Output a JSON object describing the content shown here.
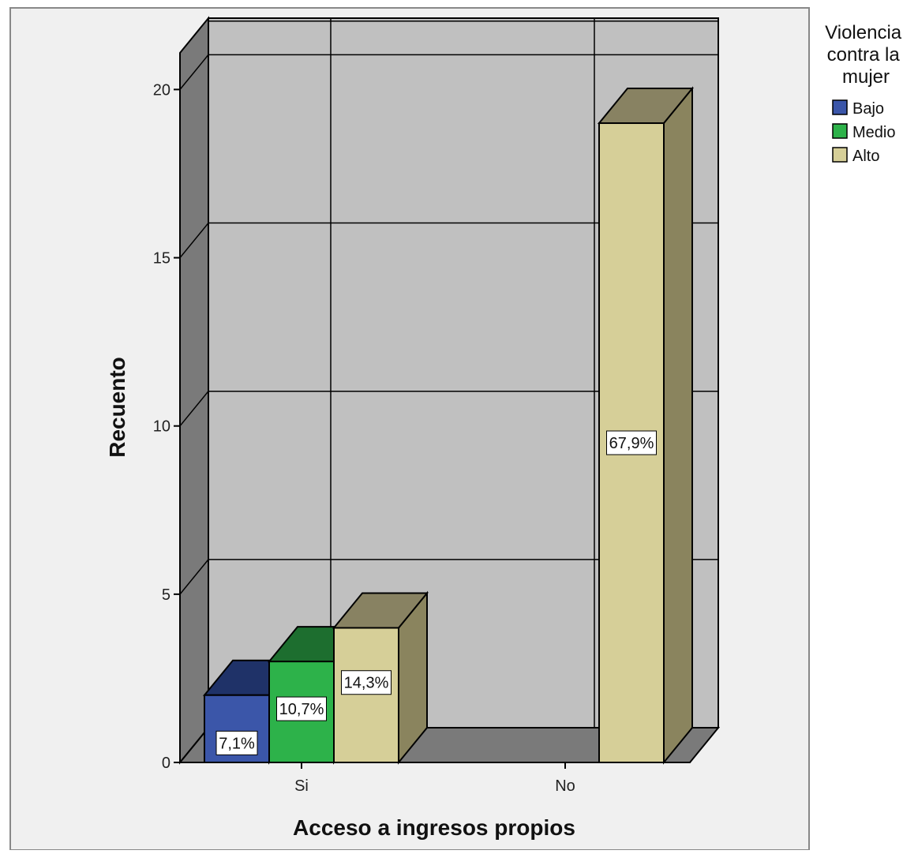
{
  "chart_data": {
    "type": "bar",
    "style": "3d-clustered",
    "categories": [
      "Si",
      "No"
    ],
    "series": [
      {
        "name": "Bajo",
        "values": [
          2,
          0
        ],
        "labels": [
          "7,1%",
          ""
        ],
        "color": "#3b56a9",
        "top_color": "#1f3268",
        "side_color": "#263c78"
      },
      {
        "name": "Medio",
        "values": [
          3,
          0
        ],
        "labels": [
          "10,7%",
          ""
        ],
        "color": "#2db24a",
        "top_color": "#1d6e2f",
        "side_color": "#1f7a33"
      },
      {
        "name": "Alto",
        "values": [
          4,
          19
        ],
        "labels": [
          "14,3%",
          "67,9%"
        ],
        "color": "#d6cf98",
        "top_color": "#888262",
        "side_color": "#8a845e"
      }
    ],
    "xlabel": "Acceso a ingresos propios",
    "ylabel": "Recuento",
    "ylim": [
      0,
      21
    ],
    "yticks": [
      0,
      5,
      10,
      15,
      20
    ],
    "grid": true,
    "legend_title": [
      "Violencia",
      "contra la",
      "mujer"
    ],
    "legend_position": "top-right",
    "colors": {
      "plot_frame_bg": "#f0f0f0",
      "back_wall": "#c0c0c0",
      "side_wall": "#7a7a7a",
      "floor": "#7a7a7a",
      "grid": "#000000"
    }
  }
}
